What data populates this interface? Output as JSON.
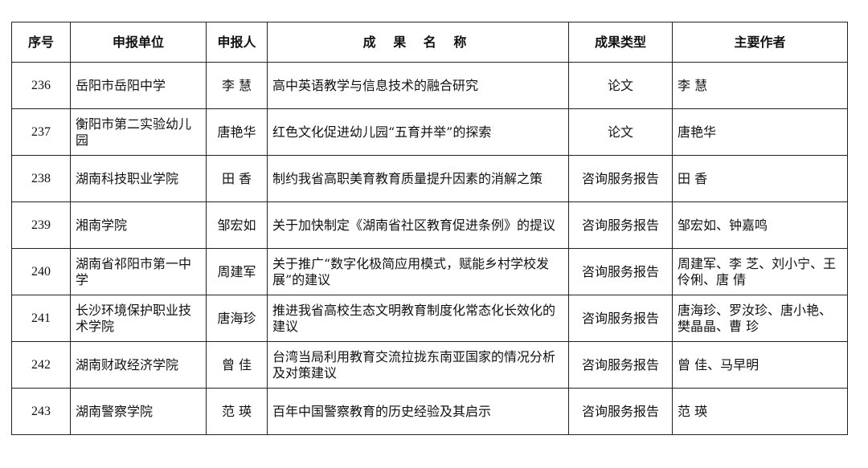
{
  "headers": [
    "序号",
    "申报单位",
    "申报人",
    "成 果 名 称",
    "成果类型",
    "主要作者"
  ],
  "rows": [
    {
      "no": "236",
      "unit": "岳阳市岳阳中学",
      "applicant": "李 慧",
      "title": "高中英语教学与信息技术的融合研究",
      "type": "论文",
      "authors": "李 慧"
    },
    {
      "no": "237",
      "unit": "衡阳市第二实验幼儿园",
      "applicant": "唐艳华",
      "title": "红色文化促进幼儿园“五育并举”的探索",
      "type": "论文",
      "authors": "唐艳华"
    },
    {
      "no": "238",
      "unit": "湖南科技职业学院",
      "applicant": "田 香",
      "title": "制约我省高职美育教育质量提升因素的消解之策",
      "type": "咨询服务报告",
      "authors": "田 香"
    },
    {
      "no": "239",
      "unit": "湘南学院",
      "applicant": "邹宏如",
      "title": "关于加快制定《湖南省社区教育促进条例》的提议",
      "type": "咨询服务报告",
      "authors": "邹宏如、钟嘉鸣"
    },
    {
      "no": "240",
      "unit": "湖南省祁阳市第一中学",
      "applicant": "周建军",
      "title": "关于推广“数字化极简应用模式，赋能乡村学校发展”的建议",
      "type": "咨询服务报告",
      "authors": "周建军、李 芝、刘小宁、王伶俐、唐 倩"
    },
    {
      "no": "241",
      "unit": "长沙环境保护职业技术学院",
      "applicant": "唐海珍",
      "title": "推进我省高校生态文明教育制度化常态化长效化的建议",
      "type": "咨询服务报告",
      "authors": "唐海珍、罗汝珍、唐小艳、樊晶晶、曹 珍"
    },
    {
      "no": "242",
      "unit": "湖南财政经济学院",
      "applicant": "曾 佳",
      "title": "台湾当局利用教育交流拉拢东南亚国家的情况分析及对策建议",
      "type": "咨询服务报告",
      "authors": "曾 佳、马早明"
    },
    {
      "no": "243",
      "unit": "湖南警察学院",
      "applicant": "范 瑛",
      "title": "百年中国警察教育的历史经验及其启示",
      "type": "咨询服务报告",
      "authors": "范 瑛"
    }
  ]
}
